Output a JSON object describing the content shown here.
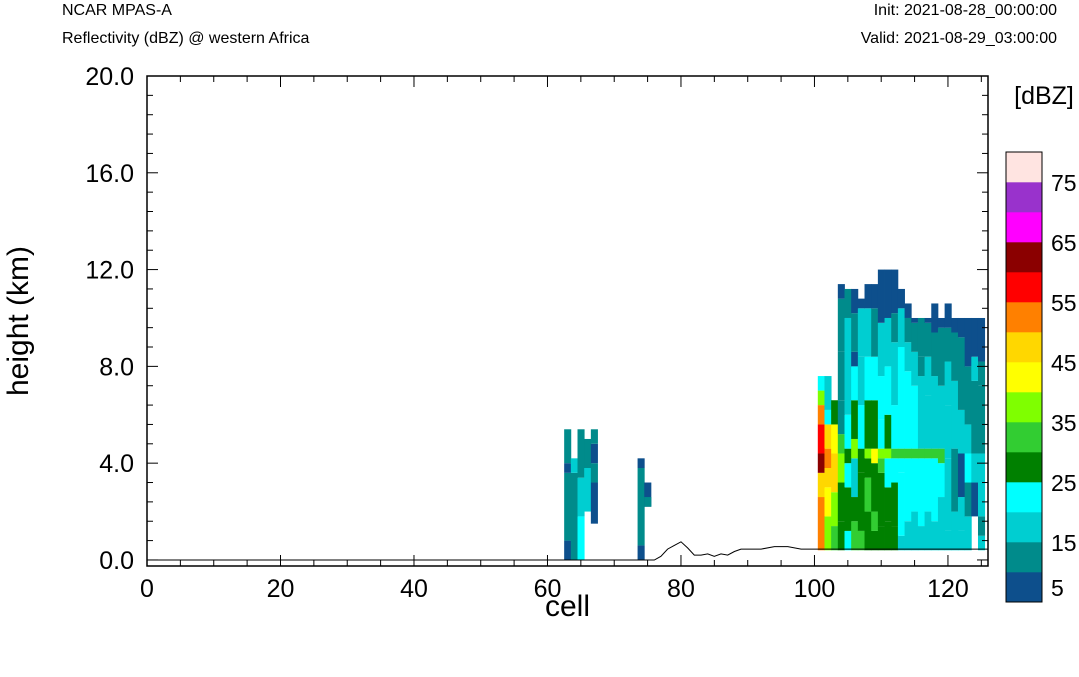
{
  "header": {
    "model": "NCAR MPAS-A",
    "subtitle": "Reflectivity (dBZ) @ western Africa",
    "init": "Init: 2021-08-28_00:00:00",
    "valid": "Valid: 2021-08-29_03:00:00"
  },
  "chart_data": {
    "type": "heatmap",
    "xlabel": "cell",
    "ylabel": "height (km)",
    "xlim": [
      0,
      126
    ],
    "ylim": [
      -0.25,
      20
    ],
    "xticks": [
      "0",
      "20",
      "40",
      "60",
      "80",
      "100",
      "120"
    ],
    "xtick_values": [
      0,
      20,
      40,
      60,
      80,
      100,
      120
    ],
    "yticks": [
      "0.0",
      "4.0",
      "8.0",
      "12.0",
      "16.0",
      "20.0"
    ],
    "ytick_values": [
      0,
      4,
      8,
      12,
      16,
      20
    ],
    "grid": false,
    "colorbar": {
      "title": "[dBZ]",
      "placement": "right",
      "labels": [
        "5",
        "15",
        "25",
        "35",
        "45",
        "55",
        "65",
        "75"
      ],
      "label_levels": [
        5,
        15,
        25,
        35,
        45,
        55,
        65,
        75
      ],
      "bins": [
        {
          "min": 0,
          "max": 10,
          "color": "#0d4f8c"
        },
        {
          "min": 10,
          "max": 15,
          "color": "#008b8b"
        },
        {
          "min": 15,
          "max": 20,
          "color": "#00ced1"
        },
        {
          "min": 20,
          "max": 25,
          "color": "#00ffff"
        },
        {
          "min": 25,
          "max": 30,
          "color": "#008000"
        },
        {
          "min": 30,
          "max": 35,
          "color": "#32cd32"
        },
        {
          "min": 35,
          "max": 40,
          "color": "#7fff00"
        },
        {
          "min": 40,
          "max": 45,
          "color": "#ffff00"
        },
        {
          "min": 45,
          "max": 50,
          "color": "#ffd700"
        },
        {
          "min": 50,
          "max": 55,
          "color": "#ff8000"
        },
        {
          "min": 55,
          "max": 60,
          "color": "#ff0000"
        },
        {
          "min": 60,
          "max": 65,
          "color": "#8b0000"
        },
        {
          "min": 65,
          "max": 70,
          "color": "#ff00ff"
        },
        {
          "min": 70,
          "max": 75,
          "color": "#9932cc"
        },
        {
          "min": 75,
          "max": 80,
          "color": "#ffe4e1"
        }
      ]
    },
    "terrain": [
      [
        0,
        0.0
      ],
      [
        76,
        0.0
      ],
      [
        77,
        0.15
      ],
      [
        78,
        0.45
      ],
      [
        79,
        0.6
      ],
      [
        80,
        0.75
      ],
      [
        81,
        0.5
      ],
      [
        82,
        0.2
      ],
      [
        83,
        0.2
      ],
      [
        84,
        0.25
      ],
      [
        85,
        0.15
      ],
      [
        86,
        0.25
      ],
      [
        87,
        0.2
      ],
      [
        88,
        0.35
      ],
      [
        89,
        0.45
      ],
      [
        90,
        0.45
      ],
      [
        92,
        0.45
      ],
      [
        94,
        0.55
      ],
      [
        96,
        0.55
      ],
      [
        98,
        0.45
      ],
      [
        100,
        0.45
      ],
      [
        102,
        0.45
      ],
      [
        105,
        0.45
      ],
      [
        110,
        0.45
      ],
      [
        115,
        0.45
      ],
      [
        120,
        0.45
      ],
      [
        126,
        0.45
      ]
    ],
    "columns": [
      {
        "x": 63,
        "cells": [
          [
            0.0,
            0.8,
            5
          ],
          [
            0.8,
            3.6,
            12
          ],
          [
            3.6,
            4.0,
            5
          ],
          [
            4.0,
            5.4,
            12
          ]
        ]
      },
      {
        "x": 64,
        "cells": [
          [
            0.0,
            3.6,
            12
          ],
          [
            3.6,
            4.2,
            17
          ]
        ]
      },
      {
        "x": 65,
        "cells": [
          [
            0.0,
            1.8,
            22
          ],
          [
            1.8,
            3.4,
            17
          ],
          [
            3.4,
            5.4,
            12
          ]
        ]
      },
      {
        "x": 66,
        "cells": [
          [
            2.0,
            3.8,
            17
          ],
          [
            3.8,
            5.0,
            12
          ]
        ]
      },
      {
        "x": 67,
        "cells": [
          [
            1.5,
            3.2,
            5
          ],
          [
            3.2,
            4.0,
            12
          ],
          [
            4.0,
            4.8,
            5
          ],
          [
            4.8,
            5.4,
            12
          ]
        ]
      },
      {
        "x": 74,
        "cells": [
          [
            0.0,
            0.6,
            5
          ],
          [
            0.6,
            3.8,
            12
          ],
          [
            3.8,
            4.2,
            5
          ]
        ]
      },
      {
        "x": 75,
        "cells": [
          [
            2.2,
            3.2,
            5
          ],
          [
            2.2,
            2.6,
            12
          ]
        ]
      },
      {
        "x": 101,
        "cells": [
          [
            0.4,
            2.6,
            52
          ],
          [
            2.6,
            3.6,
            48
          ],
          [
            3.6,
            4.4,
            62
          ],
          [
            4.4,
            5.6,
            57
          ],
          [
            5.6,
            6.4,
            52
          ],
          [
            6.4,
            7.0,
            37
          ],
          [
            7.0,
            7.6,
            22
          ]
        ]
      },
      {
        "x": 102,
        "cells": [
          [
            0.4,
            1.8,
            37
          ],
          [
            1.8,
            3.0,
            43
          ],
          [
            3.0,
            3.8,
            48
          ],
          [
            3.8,
            4.6,
            52
          ],
          [
            4.6,
            5.6,
            48
          ],
          [
            5.6,
            6.2,
            22
          ],
          [
            6.2,
            7.6,
            17
          ]
        ]
      },
      {
        "x": 103,
        "cells": [
          [
            0.4,
            1.4,
            32
          ],
          [
            1.4,
            2.8,
            37
          ],
          [
            2.8,
            4.4,
            48
          ],
          [
            4.4,
            5.6,
            43
          ],
          [
            5.6,
            6.6,
            27
          ]
        ]
      },
      {
        "x": 104,
        "cells": [
          [
            0.4,
            1.6,
            27
          ],
          [
            1.6,
            3.2,
            27
          ],
          [
            3.2,
            4.4,
            37
          ],
          [
            4.4,
            5.2,
            32
          ],
          [
            5.2,
            6.6,
            12
          ],
          [
            6.6,
            8.6,
            12
          ],
          [
            8.6,
            10.8,
            12
          ],
          [
            10.8,
            11.4,
            5
          ]
        ]
      },
      {
        "x": 105,
        "cells": [
          [
            0.4,
            1.2,
            22
          ],
          [
            1.2,
            3.0,
            27
          ],
          [
            3.0,
            4.0,
            22
          ],
          [
            4.0,
            4.6,
            27
          ],
          [
            4.6,
            6.0,
            22
          ],
          [
            6.0,
            10.0,
            17
          ],
          [
            10.0,
            11.2,
            12
          ]
        ]
      },
      {
        "x": 106,
        "cells": [
          [
            0.4,
            1.6,
            32
          ],
          [
            1.6,
            2.6,
            27
          ],
          [
            2.6,
            4.2,
            17
          ],
          [
            4.2,
            5.0,
            37
          ],
          [
            5.0,
            6.6,
            27
          ],
          [
            6.6,
            8.0,
            22
          ],
          [
            8.0,
            8.6,
            5
          ],
          [
            8.6,
            10.2,
            12
          ],
          [
            10.2,
            11.2,
            5
          ]
        ]
      },
      {
        "x": 107,
        "cells": [
          [
            0.4,
            1.2,
            32
          ],
          [
            1.2,
            3.6,
            27
          ],
          [
            3.6,
            4.6,
            27
          ],
          [
            4.6,
            6.4,
            22
          ],
          [
            6.4,
            8.4,
            17
          ],
          [
            8.4,
            10.4,
            17
          ],
          [
            10.4,
            10.8,
            5
          ]
        ]
      },
      {
        "x": 108,
        "cells": [
          [
            0.4,
            2.0,
            27
          ],
          [
            2.0,
            3.4,
            32
          ],
          [
            3.4,
            4.2,
            27
          ],
          [
            4.2,
            4.6,
            37
          ],
          [
            4.6,
            6.6,
            27
          ],
          [
            6.6,
            8.4,
            22
          ],
          [
            8.4,
            10.4,
            17
          ],
          [
            10.4,
            11.4,
            5
          ]
        ]
      },
      {
        "x": 109,
        "cells": [
          [
            0.4,
            1.2,
            27
          ],
          [
            1.2,
            2.0,
            32
          ],
          [
            2.0,
            4.0,
            27
          ],
          [
            4.0,
            4.6,
            43
          ],
          [
            4.6,
            6.6,
            27
          ],
          [
            6.6,
            8.4,
            22
          ],
          [
            8.4,
            10.4,
            12
          ],
          [
            10.4,
            11.4,
            5
          ]
        ]
      },
      {
        "x": 110,
        "cells": [
          [
            0.4,
            1.4,
            27
          ],
          [
            1.4,
            3.6,
            27
          ],
          [
            3.6,
            4.2,
            32
          ],
          [
            4.2,
            4.6,
            37
          ],
          [
            4.6,
            5.8,
            22
          ],
          [
            5.8,
            7.6,
            22
          ],
          [
            7.6,
            9.8,
            17
          ],
          [
            9.8,
            12.0,
            5
          ]
        ]
      },
      {
        "x": 111,
        "cells": [
          [
            0.4,
            1.6,
            27
          ],
          [
            1.6,
            3.0,
            27
          ],
          [
            3.0,
            4.2,
            22
          ],
          [
            4.2,
            4.6,
            37
          ],
          [
            4.6,
            6.0,
            27
          ],
          [
            6.0,
            8.0,
            22
          ],
          [
            8.0,
            10.0,
            17
          ],
          [
            10.0,
            12.0,
            5
          ]
        ]
      },
      {
        "x": 112,
        "cells": [
          [
            0.4,
            1.4,
            27
          ],
          [
            1.4,
            3.2,
            27
          ],
          [
            3.2,
            4.2,
            22
          ],
          [
            4.2,
            4.6,
            32
          ],
          [
            4.6,
            6.4,
            22
          ],
          [
            6.4,
            9.0,
            17
          ],
          [
            9.0,
            10.2,
            12
          ],
          [
            10.2,
            12.0,
            5
          ]
        ]
      },
      {
        "x": 113,
        "cells": [
          [
            0.4,
            1.0,
            17
          ],
          [
            1.0,
            3.6,
            22
          ],
          [
            3.6,
            4.2,
            22
          ],
          [
            4.2,
            4.6,
            32
          ],
          [
            4.6,
            8.8,
            22
          ],
          [
            8.8,
            10.4,
            17
          ],
          [
            10.4,
            11.2,
            5
          ]
        ]
      },
      {
        "x": 114,
        "cells": [
          [
            0.4,
            1.6,
            17
          ],
          [
            1.6,
            4.2,
            22
          ],
          [
            4.2,
            4.6,
            32
          ],
          [
            4.6,
            7.8,
            22
          ],
          [
            7.8,
            9.0,
            17
          ],
          [
            9.0,
            10.0,
            12
          ],
          [
            10.0,
            10.6,
            5
          ]
        ]
      },
      {
        "x": 115,
        "cells": [
          [
            0.4,
            2.0,
            17
          ],
          [
            2.0,
            4.2,
            22
          ],
          [
            4.2,
            4.6,
            32
          ],
          [
            4.6,
            7.2,
            22
          ],
          [
            7.2,
            8.6,
            17
          ],
          [
            8.6,
            9.8,
            12
          ],
          [
            9.8,
            10.0,
            5
          ]
        ]
      },
      {
        "x": 116,
        "cells": [
          [
            0.4,
            1.4,
            17
          ],
          [
            1.4,
            4.2,
            22
          ],
          [
            4.2,
            4.6,
            32
          ],
          [
            4.6,
            7.6,
            17
          ],
          [
            7.6,
            8.4,
            12
          ],
          [
            8.4,
            10.0,
            12
          ]
        ]
      },
      {
        "x": 117,
        "cells": [
          [
            0.4,
            2.0,
            17
          ],
          [
            2.0,
            4.2,
            22
          ],
          [
            4.2,
            4.6,
            32
          ],
          [
            4.6,
            6.8,
            17
          ],
          [
            6.8,
            8.4,
            17
          ],
          [
            8.4,
            9.8,
            12
          ],
          [
            9.8,
            10.0,
            5
          ]
        ]
      },
      {
        "x": 118,
        "cells": [
          [
            0.4,
            1.6,
            17
          ],
          [
            1.6,
            4.2,
            22
          ],
          [
            4.2,
            4.6,
            32
          ],
          [
            4.6,
            7.6,
            17
          ],
          [
            7.6,
            9.4,
            12
          ],
          [
            9.4,
            10.6,
            5
          ]
        ]
      },
      {
        "x": 119,
        "cells": [
          [
            0.4,
            2.6,
            17
          ],
          [
            2.6,
            4.0,
            22
          ],
          [
            4.0,
            4.6,
            32
          ],
          [
            4.6,
            7.2,
            17
          ],
          [
            7.2,
            9.6,
            12
          ],
          [
            9.6,
            10.0,
            5
          ]
        ]
      },
      {
        "x": 120,
        "cells": [
          [
            0.4,
            1.2,
            17
          ],
          [
            1.2,
            4.2,
            17
          ],
          [
            4.2,
            6.4,
            17
          ],
          [
            6.4,
            8.2,
            17
          ],
          [
            8.2,
            9.6,
            12
          ],
          [
            9.6,
            10.6,
            5
          ]
        ]
      },
      {
        "x": 121,
        "cells": [
          [
            0.4,
            2.0,
            17
          ],
          [
            2.0,
            4.6,
            12
          ],
          [
            4.6,
            7.4,
            17
          ],
          [
            7.4,
            9.4,
            12
          ],
          [
            9.4,
            10.0,
            5
          ]
        ]
      },
      {
        "x": 122,
        "cells": [
          [
            0.4,
            1.2,
            17
          ],
          [
            1.2,
            2.6,
            17
          ],
          [
            2.6,
            4.4,
            5
          ],
          [
            4.4,
            6.2,
            17
          ],
          [
            6.2,
            9.2,
            12
          ],
          [
            9.2,
            10.0,
            5
          ]
        ]
      },
      {
        "x": 123,
        "cells": [
          [
            0.4,
            1.8,
            17
          ],
          [
            1.8,
            3.2,
            12
          ],
          [
            3.2,
            4.4,
            22
          ],
          [
            4.4,
            5.6,
            17
          ],
          [
            5.6,
            8.0,
            12
          ],
          [
            8.0,
            10.0,
            5
          ]
        ]
      },
      {
        "x": 124,
        "cells": [
          [
            1.8,
            3.2,
            5
          ],
          [
            3.2,
            4.4,
            17
          ],
          [
            4.4,
            7.4,
            12
          ],
          [
            7.4,
            8.4,
            17
          ],
          [
            8.4,
            10.0,
            5
          ]
        ]
      },
      {
        "x": 125,
        "cells": [
          [
            0.4,
            1.0,
            17
          ],
          [
            1.0,
            1.8,
            12
          ],
          [
            1.8,
            4.4,
            17
          ],
          [
            4.4,
            7.2,
            12
          ],
          [
            7.2,
            8.2,
            12
          ],
          [
            8.2,
            10.0,
            5
          ]
        ]
      }
    ]
  }
}
